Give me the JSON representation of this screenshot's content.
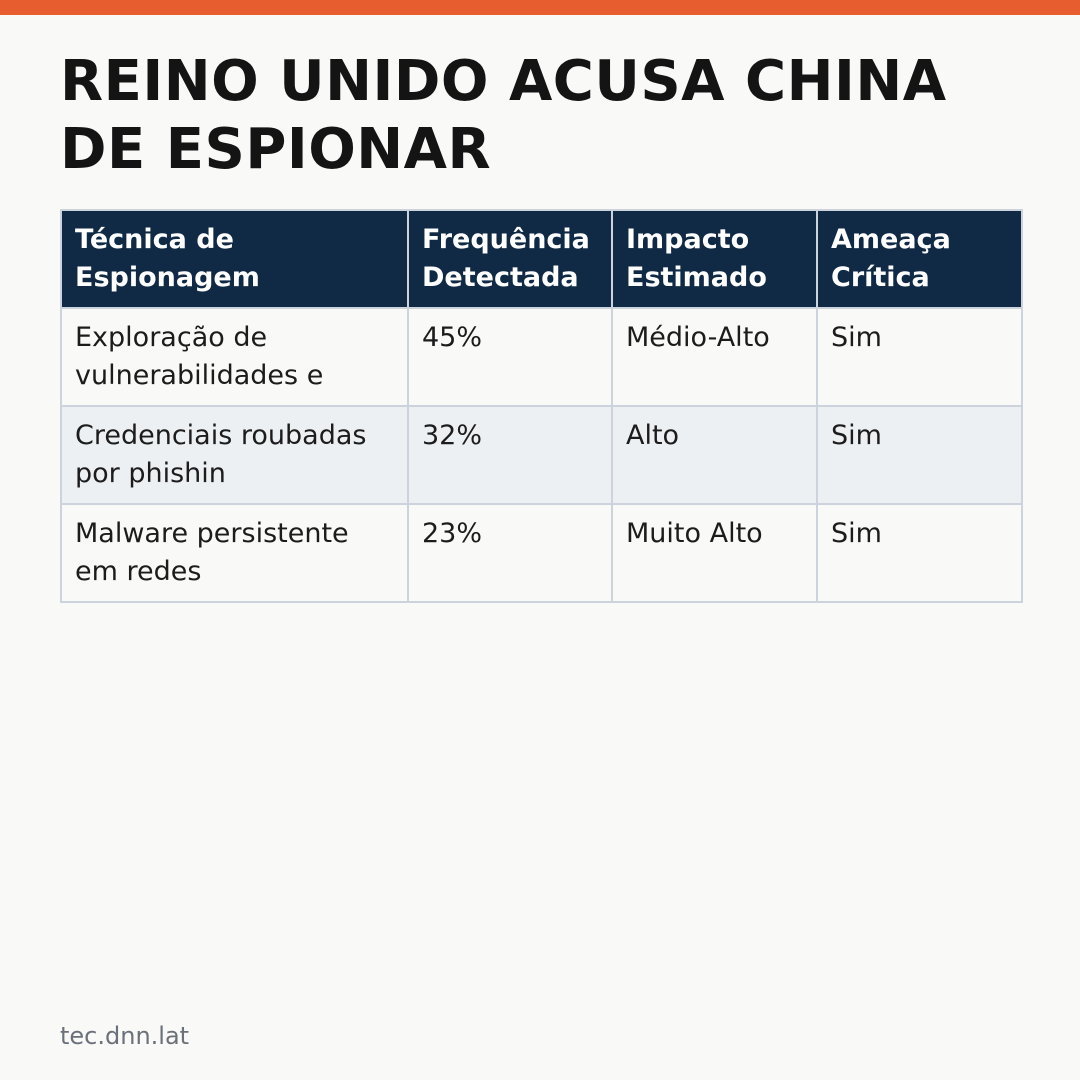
{
  "colors": {
    "accent_bar": "#e85d2f",
    "header_bg": "#102a45",
    "header_text": "#ffffff",
    "row_alt_bg": "#edf0f3",
    "page_bg": "#f9f9f7"
  },
  "title": "REINO UNIDO ACUSA CHINA DE ESPIONAR",
  "table": {
    "headers": [
      "Técnica de Espionagem",
      "Frequência Detectada",
      "Impacto Estimado",
      "Ameaça Crítica"
    ],
    "rows": [
      [
        "Exploração de vulnerabilidades e",
        "45%",
        "Médio-Alto",
        "Sim"
      ],
      [
        "Credenciais roubadas por phishin",
        "32%",
        "Alto",
        "Sim"
      ],
      [
        "Malware persistente em redes",
        "23%",
        "Muito Alto",
        "Sim"
      ]
    ]
  },
  "footer": {
    "source": "tec.dnn.lat"
  }
}
